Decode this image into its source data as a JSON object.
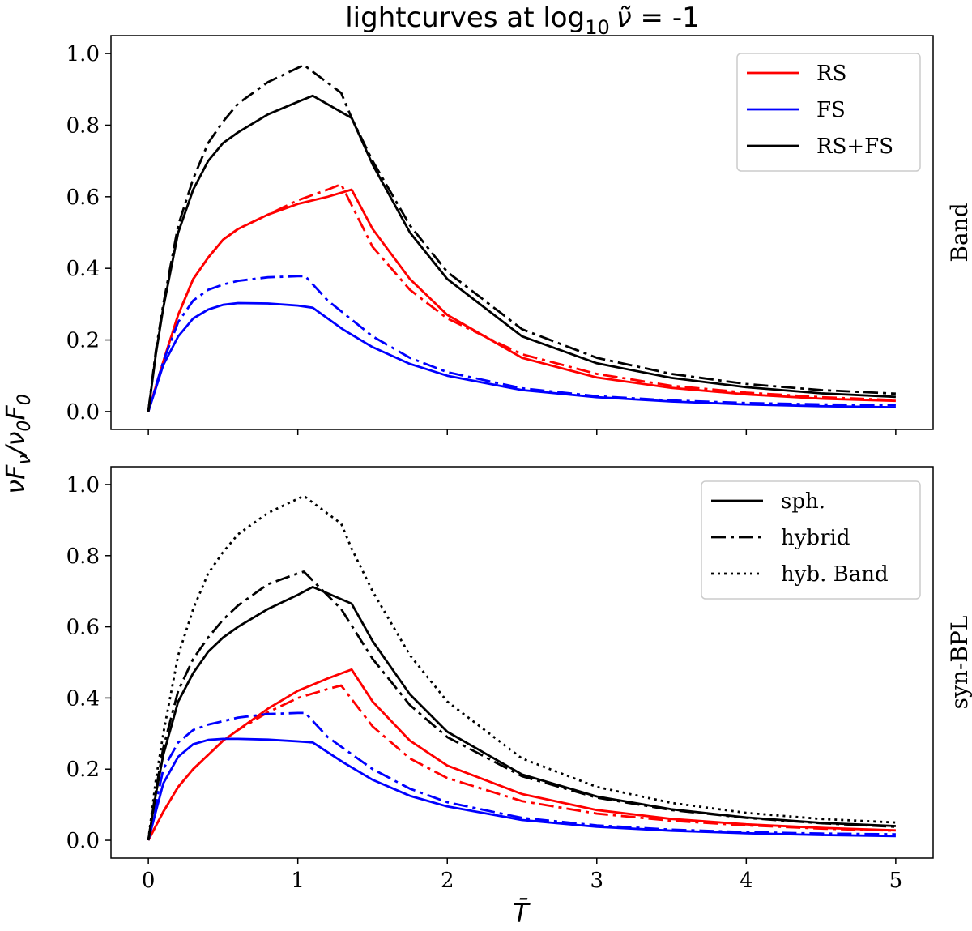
{
  "figure": {
    "title_main": "lightcurves at log",
    "title_sub": "10",
    "title_symbol": "ν̃",
    "title_value": " = -1",
    "ylabel_shared": "νF",
    "ylabel_sub1": "ν",
    "ylabel_mid": "/ν",
    "ylabel_sub2": "0",
    "ylabel_F": "F",
    "ylabel_sub3": "0",
    "xlabel": "T̄",
    "colors": {
      "RS": "#ff0000",
      "FS": "#0000ff",
      "RS+FS": "#000000"
    }
  },
  "chart_data": [
    {
      "type": "line",
      "panel": "top",
      "side_label": "Band",
      "xlim": [
        -0.25,
        5.25
      ],
      "ylim": [
        -0.05,
        1.05
      ],
      "xticks": [
        "0",
        "1",
        "2",
        "3",
        "4",
        "5"
      ],
      "yticks": [
        "0.0",
        "0.2",
        "0.4",
        "0.6",
        "0.8",
        "1.0"
      ],
      "show_xtick_labels": false,
      "legend": {
        "position": "top-right",
        "entries": [
          {
            "label": "RS",
            "color": "#ff0000",
            "style": "solid"
          },
          {
            "label": "FS",
            "color": "#0000ff",
            "style": "solid"
          },
          {
            "label": "RS+FS",
            "color": "#000000",
            "style": "solid"
          }
        ]
      },
      "series": [
        {
          "name": "RS sph.",
          "color": "#ff0000",
          "style": "solid",
          "x": [
            0,
            0.1,
            0.2,
            0.3,
            0.4,
            0.5,
            0.6,
            0.8,
            1.0,
            1.2,
            1.36,
            1.5,
            1.75,
            2.0,
            2.5,
            3.0,
            3.5,
            4.0,
            4.5,
            5.0
          ],
          "y": [
            0,
            0.14,
            0.27,
            0.37,
            0.43,
            0.48,
            0.51,
            0.55,
            0.58,
            0.6,
            0.62,
            0.51,
            0.37,
            0.27,
            0.15,
            0.095,
            0.066,
            0.048,
            0.036,
            0.03
          ]
        },
        {
          "name": "RS hybrid",
          "color": "#ff0000",
          "style": "dashdot",
          "x": [
            0,
            0.1,
            0.2,
            0.3,
            0.4,
            0.5,
            0.6,
            0.8,
            1.0,
            1.2,
            1.29,
            1.5,
            1.75,
            2.0,
            2.5,
            3.0,
            3.5,
            4.0,
            4.5,
            5.0
          ],
          "y": [
            0,
            0.14,
            0.27,
            0.37,
            0.43,
            0.48,
            0.51,
            0.55,
            0.59,
            0.62,
            0.635,
            0.46,
            0.34,
            0.26,
            0.16,
            0.105,
            0.072,
            0.053,
            0.04,
            0.032
          ]
        },
        {
          "name": "FS sph.",
          "color": "#0000ff",
          "style": "solid",
          "x": [
            0,
            0.1,
            0.2,
            0.3,
            0.4,
            0.5,
            0.6,
            0.8,
            1.0,
            1.1,
            1.3,
            1.5,
            1.75,
            2.0,
            2.5,
            3.0,
            3.5,
            4.0,
            4.5,
            5.0
          ],
          "y": [
            0,
            0.13,
            0.21,
            0.26,
            0.285,
            0.298,
            0.303,
            0.302,
            0.296,
            0.29,
            0.23,
            0.18,
            0.133,
            0.1,
            0.06,
            0.04,
            0.028,
            0.02,
            0.015,
            0.012
          ]
        },
        {
          "name": "FS hybrid",
          "color": "#0000ff",
          "style": "dashdot",
          "x": [
            0,
            0.1,
            0.2,
            0.3,
            0.4,
            0.5,
            0.6,
            0.8,
            1.0,
            1.05,
            1.2,
            1.5,
            1.75,
            2.0,
            2.5,
            3.0,
            3.5,
            4.0,
            4.5,
            5.0
          ],
          "y": [
            0,
            0.14,
            0.25,
            0.31,
            0.34,
            0.355,
            0.365,
            0.375,
            0.378,
            0.378,
            0.31,
            0.21,
            0.15,
            0.11,
            0.065,
            0.043,
            0.031,
            0.024,
            0.02,
            0.018
          ]
        },
        {
          "name": "RS+FS sph.",
          "color": "#000000",
          "style": "solid",
          "x": [
            0,
            0.05,
            0.1,
            0.2,
            0.3,
            0.4,
            0.5,
            0.6,
            0.8,
            1.0,
            1.1,
            1.36,
            1.5,
            1.75,
            2.0,
            2.5,
            3.0,
            3.5,
            4.0,
            4.5,
            5.0
          ],
          "y": [
            0,
            0.16,
            0.29,
            0.5,
            0.62,
            0.7,
            0.75,
            0.78,
            0.83,
            0.865,
            0.882,
            0.82,
            0.69,
            0.5,
            0.37,
            0.21,
            0.135,
            0.094,
            0.068,
            0.051,
            0.041
          ]
        },
        {
          "name": "RS+FS hybrid",
          "color": "#000000",
          "style": "dashdot",
          "x": [
            0,
            0.05,
            0.1,
            0.2,
            0.3,
            0.4,
            0.5,
            0.6,
            0.8,
            1.0,
            1.04,
            1.29,
            1.36,
            1.5,
            1.75,
            2.0,
            2.5,
            3.0,
            3.5,
            4.0,
            4.5,
            5.0
          ],
          "y": [
            0,
            0.17,
            0.3,
            0.52,
            0.65,
            0.75,
            0.81,
            0.86,
            0.92,
            0.96,
            0.968,
            0.89,
            0.82,
            0.7,
            0.52,
            0.39,
            0.23,
            0.15,
            0.105,
            0.077,
            0.06,
            0.05
          ]
        }
      ]
    },
    {
      "type": "line",
      "panel": "bottom",
      "side_label": "syn-BPL",
      "xlim": [
        -0.25,
        5.25
      ],
      "ylim": [
        -0.05,
        1.05
      ],
      "xticks": [
        "0",
        "1",
        "2",
        "3",
        "4",
        "5"
      ],
      "yticks": [
        "0.0",
        "0.2",
        "0.4",
        "0.6",
        "0.8",
        "1.0"
      ],
      "show_xtick_labels": true,
      "legend": {
        "position": "top-right",
        "entries": [
          {
            "label": "sph.",
            "color": "#000000",
            "style": "solid"
          },
          {
            "label": "hybrid",
            "color": "#000000",
            "style": "dashdot"
          },
          {
            "label": "hyb. Band",
            "color": "#000000",
            "style": "dotted"
          }
        ]
      },
      "series": [
        {
          "name": "RS sph.",
          "color": "#ff0000",
          "style": "solid",
          "x": [
            0,
            0.1,
            0.2,
            0.3,
            0.4,
            0.5,
            0.6,
            0.8,
            1.0,
            1.2,
            1.36,
            1.5,
            1.75,
            2.0,
            2.5,
            3.0,
            3.5,
            4.0,
            4.5,
            5.0
          ],
          "y": [
            0,
            0.08,
            0.15,
            0.2,
            0.24,
            0.28,
            0.31,
            0.37,
            0.42,
            0.455,
            0.48,
            0.39,
            0.28,
            0.21,
            0.13,
            0.085,
            0.06,
            0.045,
            0.035,
            0.028
          ]
        },
        {
          "name": "RS hybrid",
          "color": "#ff0000",
          "style": "dashdot",
          "x": [
            0,
            0.1,
            0.2,
            0.3,
            0.4,
            0.5,
            0.6,
            0.8,
            1.0,
            1.2,
            1.29,
            1.5,
            1.75,
            2.0,
            2.5,
            3.0,
            3.5,
            4.0,
            4.5,
            5.0
          ],
          "y": [
            0,
            0.08,
            0.15,
            0.2,
            0.24,
            0.28,
            0.31,
            0.36,
            0.4,
            0.425,
            0.435,
            0.32,
            0.23,
            0.175,
            0.11,
            0.075,
            0.055,
            0.042,
            0.033,
            0.027
          ]
        },
        {
          "name": "FS sph.",
          "color": "#0000ff",
          "style": "solid",
          "x": [
            0,
            0.1,
            0.2,
            0.3,
            0.4,
            0.5,
            0.6,
            0.8,
            1.0,
            1.1,
            1.3,
            1.5,
            1.75,
            2.0,
            2.5,
            3.0,
            3.5,
            4.0,
            4.5,
            5.0
          ],
          "y": [
            0,
            0.16,
            0.235,
            0.27,
            0.282,
            0.285,
            0.285,
            0.283,
            0.278,
            0.275,
            0.22,
            0.17,
            0.125,
            0.095,
            0.057,
            0.038,
            0.027,
            0.02,
            0.015,
            0.012
          ]
        },
        {
          "name": "FS hybrid",
          "color": "#0000ff",
          "style": "dashdot",
          "x": [
            0,
            0.1,
            0.2,
            0.3,
            0.4,
            0.5,
            0.6,
            0.8,
            1.0,
            1.05,
            1.2,
            1.5,
            1.75,
            2.0,
            2.5,
            3.0,
            3.5,
            4.0,
            4.5,
            5.0
          ],
          "y": [
            0,
            0.2,
            0.275,
            0.31,
            0.325,
            0.335,
            0.345,
            0.355,
            0.358,
            0.358,
            0.29,
            0.2,
            0.145,
            0.107,
            0.063,
            0.042,
            0.03,
            0.023,
            0.019,
            0.017
          ]
        },
        {
          "name": "RS+FS sph.",
          "color": "#000000",
          "style": "solid",
          "x": [
            0,
            0.05,
            0.1,
            0.2,
            0.3,
            0.4,
            0.5,
            0.6,
            0.8,
            1.0,
            1.1,
            1.36,
            1.5,
            1.75,
            2.0,
            2.5,
            3.0,
            3.5,
            4.0,
            4.5,
            5.0
          ],
          "y": [
            0,
            0.13,
            0.24,
            0.39,
            0.47,
            0.53,
            0.57,
            0.6,
            0.65,
            0.69,
            0.712,
            0.665,
            0.56,
            0.41,
            0.305,
            0.185,
            0.123,
            0.087,
            0.064,
            0.049,
            0.04
          ]
        },
        {
          "name": "RS+FS hybrid",
          "color": "#000000",
          "style": "dashdot",
          "x": [
            0,
            0.05,
            0.1,
            0.2,
            0.3,
            0.4,
            0.5,
            0.6,
            0.8,
            1.0,
            1.04,
            1.29,
            1.5,
            1.75,
            2.0,
            2.5,
            3.0,
            3.5,
            4.0,
            4.5,
            5.0
          ],
          "y": [
            0,
            0.14,
            0.26,
            0.42,
            0.51,
            0.57,
            0.62,
            0.66,
            0.72,
            0.75,
            0.755,
            0.65,
            0.51,
            0.38,
            0.29,
            0.18,
            0.12,
            0.085,
            0.063,
            0.048,
            0.038
          ]
        },
        {
          "name": "RS+FS hyb. Band",
          "color": "#000000",
          "style": "dotted",
          "x": [
            0,
            0.05,
            0.1,
            0.2,
            0.3,
            0.4,
            0.5,
            0.6,
            0.8,
            1.0,
            1.04,
            1.29,
            1.36,
            1.5,
            1.75,
            2.0,
            2.5,
            3.0,
            3.5,
            4.0,
            4.5,
            5.0
          ],
          "y": [
            0,
            0.17,
            0.3,
            0.52,
            0.65,
            0.75,
            0.81,
            0.86,
            0.92,
            0.96,
            0.968,
            0.89,
            0.82,
            0.7,
            0.52,
            0.39,
            0.23,
            0.15,
            0.105,
            0.077,
            0.06,
            0.05
          ]
        }
      ]
    }
  ]
}
